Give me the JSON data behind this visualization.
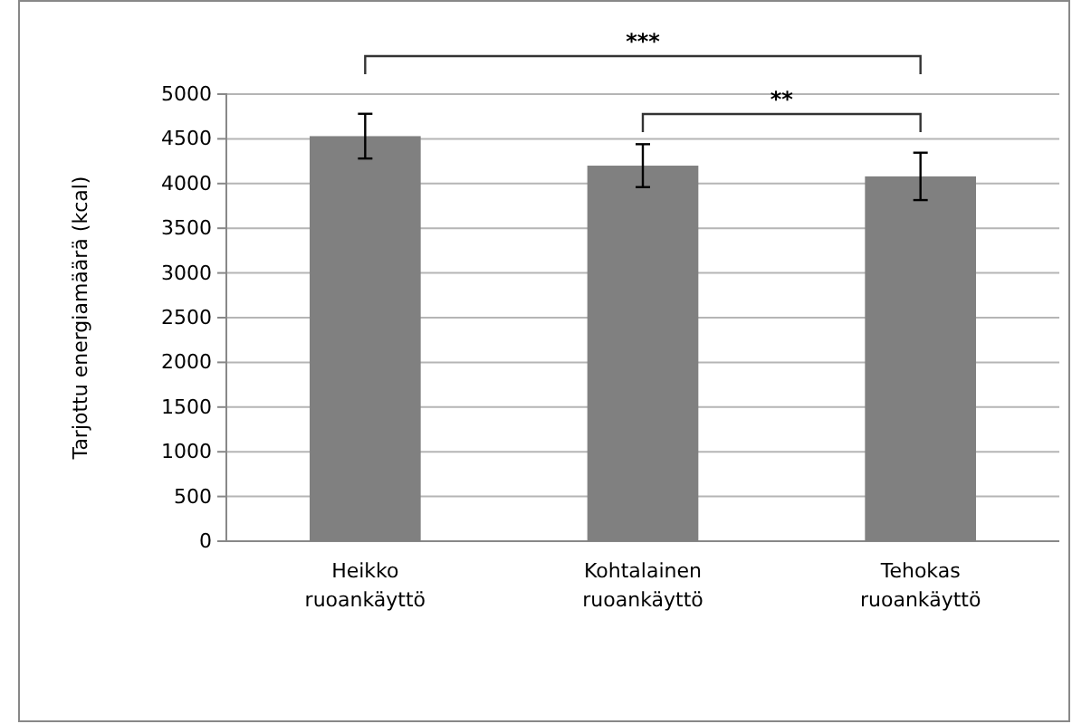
{
  "chart_data": {
    "type": "bar",
    "ylabel": "Tarjottu energiamäärä (kcal)",
    "categories": [
      "Heikko ruoankäyttö",
      "Kohtalainen ruoankäyttö",
      "Tehokas ruoankäyttö"
    ],
    "values": [
      4530,
      4200,
      4080
    ],
    "errors": [
      250,
      240,
      265
    ],
    "color": "#808080",
    "ylim": [
      0,
      5000
    ],
    "yticks": [
      0,
      500,
      1000,
      1500,
      2000,
      2500,
      3000,
      3500,
      4000,
      4500,
      5000
    ],
    "grid": "y",
    "annotations": [
      "***",
      "**"
    ]
  }
}
